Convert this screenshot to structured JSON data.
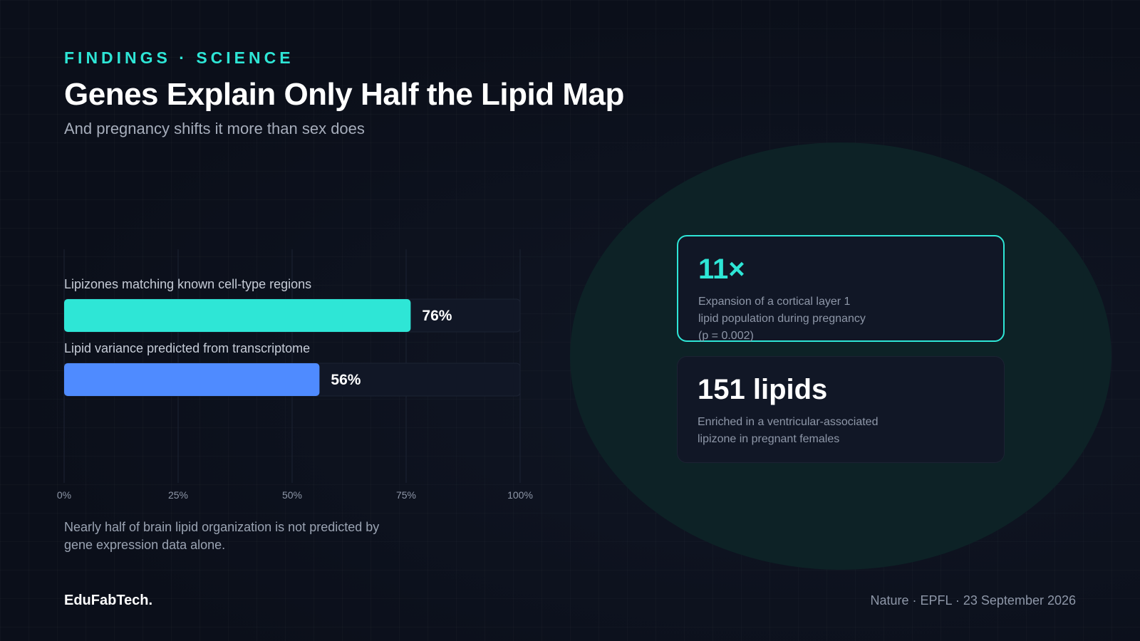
{
  "header": {
    "eyebrow": "FINDINGS · SCIENCE",
    "title": "Genes Explain Only Half the Lipid Map",
    "subtitle": "And pregnancy shifts it more than sex does"
  },
  "chart_data": {
    "type": "bar",
    "orientation": "horizontal",
    "categories": [
      "Lipizones matching known cell-type regions",
      "Lipid variance predicted from transcriptome"
    ],
    "values": [
      76,
      56
    ],
    "value_labels": [
      "76%",
      "56%"
    ],
    "colors": [
      "#2ee6d6",
      "#4f8bff"
    ],
    "xlim": [
      0,
      100
    ],
    "xticks": [
      0,
      25,
      50,
      75,
      100
    ],
    "xtick_labels": [
      "0%",
      "25%",
      "50%",
      "75%",
      "100%"
    ],
    "grid": true
  },
  "chart_note": "Nearly half of brain lipid organization is not predicted by gene expression data alone.",
  "stats": [
    {
      "value": "11×",
      "description": "Expansion of a cortical layer 1\nlipid population during pregnancy\n(p = 0.002)",
      "value_color": "#2ee6d6",
      "highlighted": true
    },
    {
      "value": "151 lipids",
      "description": "Enriched in a ventricular-associated\nlipizone in pregnant females",
      "value_color": "#ffffff",
      "highlighted": false
    }
  ],
  "footer": {
    "brand": "EduFabTech.",
    "source": "Nature · EPFL · 23 September 2026"
  },
  "colors": {
    "accent": "#2ee6d6",
    "secondary": "#4f8bff",
    "background": "#0b0f1a",
    "card": "#111726"
  }
}
